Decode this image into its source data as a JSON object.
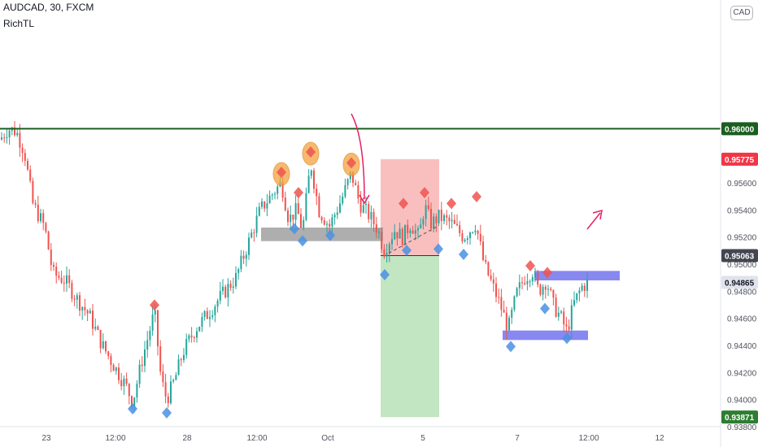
{
  "header": {
    "symbol_line": "AUDCAD, 30, FXCM",
    "indicator": "RichTL",
    "currency_badge": "CAD"
  },
  "colors": {
    "up": "#26a69a",
    "down": "#ef5350",
    "resistance_line": "#1b5e20",
    "current_price_tag": "#f23645",
    "stop_zone": "#f8b4b4",
    "target_zone": "#b7e1b7",
    "marker_high": "#ef5350",
    "marker_low": "#4a90e2",
    "pattern_zone": "#7b7bf0",
    "support_bar": "#a0a0a0",
    "annotation_arrow": "#e91e63",
    "circle_highlight": "#f4a340"
  },
  "chart_data": {
    "type": "candlestick",
    "symbol": "AUDCAD",
    "timeframe": "30",
    "source": "FXCM",
    "ylim": [
      0.938,
      0.9695
    ],
    "y_ticks": [
      "0.95600",
      "0.95400",
      "0.95200",
      "0.95000",
      "0.94800",
      "0.94600",
      "0.94400",
      "0.94200",
      "0.94000",
      "0.93800"
    ],
    "x_ticks": [
      "23",
      "12:00",
      "28",
      "12:00",
      "Oct",
      "5",
      "7",
      "12:00",
      "12"
    ],
    "price_labels": [
      {
        "value": 0.96,
        "label": "0.96000",
        "color": "#1b5e20"
      },
      {
        "value": 0.95775,
        "label": "0.95775",
        "color": "#f23645"
      },
      {
        "value": 0.95063,
        "label": "0.95063",
        "color": "#434651"
      },
      {
        "value": 0.94865,
        "label": "0.94865",
        "color": "#e0e3eb"
      },
      {
        "value": 0.93871,
        "label": "0.93871",
        "color": "#2e7d32"
      }
    ],
    "series": [
      {
        "name": "price_path",
        "points": [
          [
            0,
            0.9592
          ],
          [
            10,
            0.96
          ],
          [
            20,
            0.9598
          ],
          [
            30,
            0.9583
          ],
          [
            40,
            0.9545
          ],
          [
            55,
            0.9527
          ],
          [
            65,
            0.9493
          ],
          [
            80,
            0.9488
          ],
          [
            95,
            0.9474
          ],
          [
            110,
            0.9462
          ],
          [
            125,
            0.9441
          ],
          [
            140,
            0.9425
          ],
          [
            155,
            0.941
          ],
          [
            163,
            0.9398
          ],
          [
            175,
            0.943
          ],
          [
            190,
            0.9465
          ],
          [
            198,
            0.9415
          ],
          [
            205,
            0.94
          ],
          [
            215,
            0.9415
          ],
          [
            225,
            0.9435
          ],
          [
            240,
            0.9452
          ],
          [
            255,
            0.9463
          ],
          [
            270,
            0.9475
          ],
          [
            290,
            0.949
          ],
          [
            305,
            0.9515
          ],
          [
            320,
            0.954
          ],
          [
            335,
            0.9552
          ],
          [
            346,
            0.956
          ],
          [
            355,
            0.9533
          ],
          [
            365,
            0.954
          ],
          [
            372,
            0.9525
          ],
          [
            382,
            0.9575
          ],
          [
            392,
            0.954
          ],
          [
            405,
            0.9528
          ],
          [
            420,
            0.9548
          ],
          [
            432,
            0.9567
          ],
          [
            442,
            0.9545
          ],
          [
            455,
            0.9535
          ],
          [
            465,
            0.9525
          ],
          [
            472,
            0.951
          ],
          [
            485,
            0.9525
          ],
          [
            495,
            0.952
          ],
          [
            505,
            0.953
          ],
          [
            515,
            0.952
          ],
          [
            522,
            0.9543
          ],
          [
            530,
            0.953
          ],
          [
            540,
            0.9535
          ],
          [
            555,
            0.953
          ],
          [
            570,
            0.952
          ],
          [
            585,
            0.953
          ],
          [
            595,
            0.95
          ],
          [
            605,
            0.9485
          ],
          [
            615,
            0.947
          ],
          [
            625,
            0.9452
          ],
          [
            635,
            0.9478
          ],
          [
            645,
            0.949
          ],
          [
            655,
            0.9495
          ],
          [
            662,
            0.948
          ],
          [
            672,
            0.9488
          ],
          [
            680,
            0.947
          ],
          [
            690,
            0.946
          ],
          [
            697,
            0.945
          ],
          [
            705,
            0.947
          ],
          [
            715,
            0.9483
          ],
          [
            725,
            0.9487
          ]
        ]
      },
      {
        "name": "swing_highs",
        "points": [
          [
            190,
            0.9465
          ],
          [
            346,
            0.9563
          ],
          [
            367,
            0.9548
          ],
          [
            382,
            0.9578
          ],
          [
            432,
            0.957
          ],
          [
            496,
            0.954
          ],
          [
            522,
            0.9548
          ],
          [
            555,
            0.954
          ],
          [
            586,
            0.9545
          ],
          [
            652,
            0.9494
          ],
          [
            673,
            0.9489
          ]
        ]
      },
      {
        "name": "swing_lows",
        "points": [
          [
            163,
            0.9398
          ],
          [
            205,
            0.9395
          ],
          [
            362,
            0.9531
          ],
          [
            372,
            0.9522
          ],
          [
            406,
            0.9526
          ],
          [
            473,
            0.9497
          ],
          [
            500,
            0.9515
          ],
          [
            539,
            0.9516
          ],
          [
            570,
            0.9512
          ],
          [
            628,
            0.9444
          ],
          [
            670,
            0.9472
          ],
          [
            697,
            0.945
          ]
        ]
      }
    ],
    "annotations": [
      {
        "type": "horizontal_line",
        "price": 0.96
      },
      {
        "type": "support_zone",
        "from_price": 0.9517,
        "to_price": 0.9527
      },
      {
        "type": "stop_zone",
        "from_price": 0.95063,
        "to_price": 0.95775
      },
      {
        "type": "target_zone",
        "from_price": 0.93871,
        "to_price": 0.95063
      },
      {
        "type": "resistance_zone",
        "from_price": 0.9488,
        "to_price": 0.9495
      },
      {
        "type": "support_zone_2",
        "from_price": 0.9444,
        "to_price": 0.9451
      },
      {
        "type": "highlighted_tops",
        "count": 3
      },
      {
        "type": "arrow_down"
      },
      {
        "type": "arrow_up"
      }
    ]
  }
}
